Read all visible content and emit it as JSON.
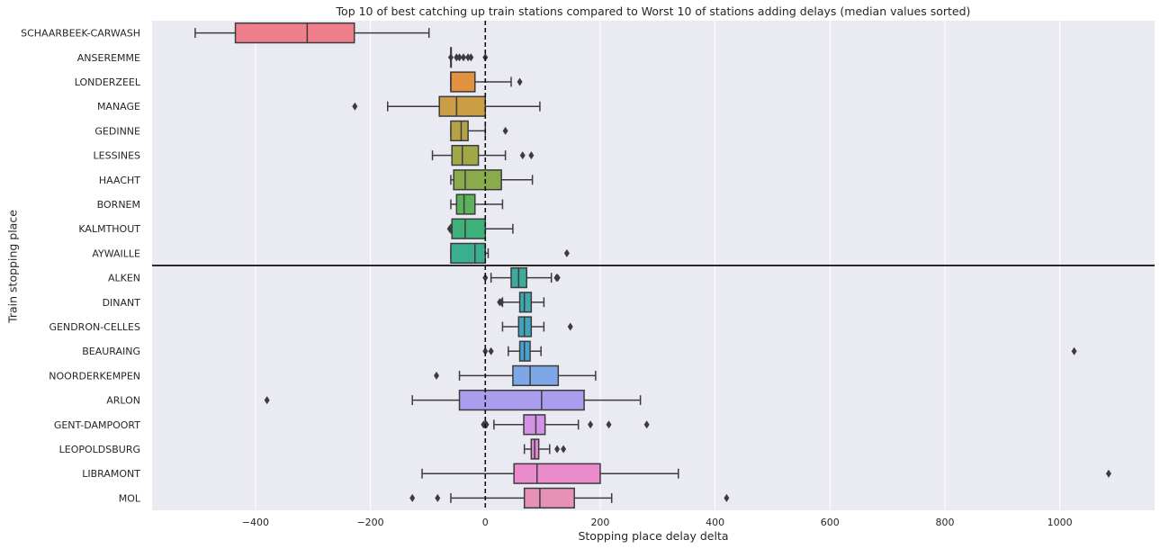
{
  "chart_data": {
    "type": "box",
    "orientation": "horizontal",
    "title": "Top 10 of best catching up train stations compared to Worst 10 of stations adding delays (median values sorted)",
    "xlabel": "Stopping place delay delta",
    "ylabel": "Train stopping place",
    "xlim": [
      -580,
      1165
    ],
    "xticks": [
      -400,
      -200,
      0,
      200,
      400,
      600,
      800,
      1000
    ],
    "xtick_labels": [
      "−400",
      "−200",
      "0",
      "200",
      "400",
      "600",
      "800",
      "1000"
    ],
    "reference_line_x": 0,
    "separator_after_index": 9,
    "grid": true,
    "background": "#eaeaf2",
    "series": [
      {
        "name": "SCHAARBEEK-CARWASH",
        "color": "#f07f8c",
        "whislo": -505,
        "q1": -435,
        "med": -310,
        "q3": -228,
        "whishi": -98,
        "fliers": []
      },
      {
        "name": "ANSEREMME",
        "color": "#ea9a3a",
        "whislo": -60,
        "q1": -60,
        "med": -60,
        "q3": -60,
        "whishi": -60,
        "fliers": [
          -60,
          -50,
          -45,
          -38,
          -30,
          -25,
          0
        ]
      },
      {
        "name": "LONDERZEEL",
        "color": "#e29140",
        "whislo": -60,
        "q1": -60,
        "med": -60,
        "q3": -18,
        "whishi": 45,
        "fliers": [
          60
        ]
      },
      {
        "name": "MANAGE",
        "color": "#cb9d45",
        "whislo": -170,
        "q1": -80,
        "med": -50,
        "q3": 0,
        "whishi": 95,
        "fliers": [
          -227
        ]
      },
      {
        "name": "GEDINNE",
        "color": "#b6a148",
        "whislo": -60,
        "q1": -60,
        "med": -42,
        "q3": -30,
        "whishi": 0,
        "fliers": [
          35
        ]
      },
      {
        "name": "LESSINES",
        "color": "#a3a847",
        "whislo": -92,
        "q1": -58,
        "med": -40,
        "q3": -12,
        "whishi": 35,
        "fliers": [
          65,
          80
        ]
      },
      {
        "name": "HAACHT",
        "color": "#8aab4c",
        "whislo": -60,
        "q1": -55,
        "med": -35,
        "q3": 28,
        "whishi": 82,
        "fliers": []
      },
      {
        "name": "BORNEM",
        "color": "#5bb15c",
        "whislo": -60,
        "q1": -50,
        "med": -37,
        "q3": -18,
        "whishi": 30,
        "fliers": []
      },
      {
        "name": "KALMTHOUT",
        "color": "#3eb07a",
        "whislo": -60,
        "q1": -58,
        "med": -35,
        "q3": 0,
        "whishi": 48,
        "fliers": [
          -62
        ]
      },
      {
        "name": "AYWAILLE",
        "color": "#3aae8f",
        "whislo": -60,
        "q1": -60,
        "med": -18,
        "q3": 0,
        "whishi": 5,
        "fliers": [
          142
        ]
      },
      {
        "name": "ALKEN",
        "color": "#3dab9e",
        "whislo": 10,
        "q1": 45,
        "med": 58,
        "q3": 72,
        "whishi": 115,
        "fliers": [
          0,
          124,
          126
        ]
      },
      {
        "name": "DINANT",
        "color": "#3fa9ad",
        "whislo": 30,
        "q1": 60,
        "med": 68,
        "q3": 80,
        "whishi": 102,
        "fliers": [
          25,
          28
        ]
      },
      {
        "name": "GENDRON-CELLES",
        "color": "#40a5bb",
        "whislo": 30,
        "q1": 58,
        "med": 68,
        "q3": 80,
        "whishi": 102,
        "fliers": [
          148
        ]
      },
      {
        "name": "BEAURAING",
        "color": "#46a3d0",
        "whislo": 40,
        "q1": 60,
        "med": 68,
        "q3": 78,
        "whishi": 97,
        "fliers": [
          0,
          10,
          1025
        ]
      },
      {
        "name": "NOORDERKEMPEN",
        "color": "#7ea7e8",
        "whislo": -45,
        "q1": 48,
        "med": 78,
        "q3": 127,
        "whishi": 192,
        "fliers": [
          -85
        ]
      },
      {
        "name": "ARLON",
        "color": "#ab9ded",
        "whislo": -127,
        "q1": -45,
        "med": 98,
        "q3": 172,
        "whishi": 270,
        "fliers": [
          -380
        ]
      },
      {
        "name": "GENT-DAMPOORT",
        "color": "#d292e5",
        "whislo": 15,
        "q1": 67,
        "med": 88,
        "q3": 104,
        "whishi": 162,
        "fliers": [
          -3,
          0,
          2,
          183,
          215,
          281
        ]
      },
      {
        "name": "LEOPOLDSBURG",
        "color": "#e58ad6",
        "whislo": 68,
        "q1": 80,
        "med": 86,
        "q3": 93,
        "whishi": 112,
        "fliers": [
          125,
          136
        ]
      },
      {
        "name": "LIBRAMONT",
        "color": "#ea8bcb",
        "whislo": -110,
        "q1": 50,
        "med": 90,
        "q3": 200,
        "whishi": 336,
        "fliers": [
          1085
        ]
      },
      {
        "name": "MOL",
        "color": "#e891b6",
        "whislo": -60,
        "q1": 68,
        "med": 95,
        "q3": 155,
        "whishi": 220,
        "fliers": [
          -127,
          -83,
          420
        ]
      }
    ]
  }
}
